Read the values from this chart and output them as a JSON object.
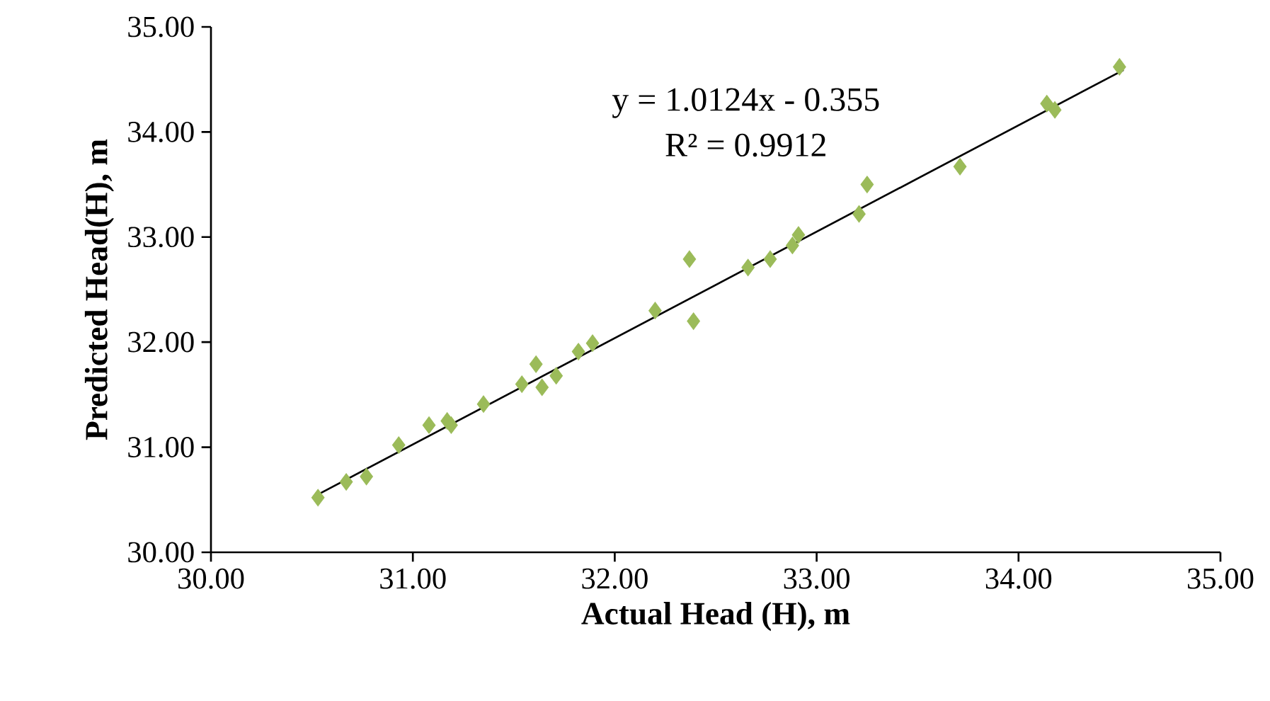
{
  "chart_data": {
    "type": "scatter",
    "xlabel": "Actual  Head (H), m",
    "ylabel": "Predicted  Head(H),  m",
    "annotations": [
      "y = 1.0124x - 0.355",
      "R² = 0.9912"
    ],
    "xlim": [
      30,
      35
    ],
    "ylim": [
      30,
      35
    ],
    "xticks": [
      {
        "value": 30,
        "label": "30.00"
      },
      {
        "value": 31,
        "label": "31.00"
      },
      {
        "value": 32,
        "label": "32.00"
      },
      {
        "value": 33,
        "label": "33.00"
      },
      {
        "value": 34,
        "label": "34.00"
      },
      {
        "value": 35,
        "label": "35.00"
      }
    ],
    "yticks": [
      {
        "value": 30,
        "label": "30.00"
      },
      {
        "value": 31,
        "label": "31.00"
      },
      {
        "value": 32,
        "label": "32.00"
      },
      {
        "value": 33,
        "label": "33.00"
      },
      {
        "value": 34,
        "label": "34.00"
      },
      {
        "value": 35,
        "label": "35.00"
      }
    ],
    "marker": "diamond",
    "series": [
      {
        "color": "#9bbb59",
        "x": [
          30.53,
          30.67,
          30.77,
          30.93,
          31.08,
          31.17,
          31.19,
          31.35,
          31.54,
          31.61,
          31.64,
          31.71,
          31.82,
          31.89,
          32.2,
          32.37,
          32.39,
          32.66,
          32.77,
          32.88,
          32.91,
          33.21,
          33.25,
          33.71,
          34.14,
          34.18,
          34.5
        ],
        "values": [
          30.52,
          30.67,
          30.72,
          31.02,
          31.21,
          31.25,
          31.21,
          31.41,
          31.6,
          31.79,
          31.57,
          31.68,
          31.91,
          31.99,
          32.3,
          32.79,
          32.2,
          32.71,
          32.79,
          32.92,
          33.02,
          33.22,
          33.5,
          33.67,
          34.27,
          34.21,
          34.62
        ]
      },
      {
        "type": "line",
        "color": "#000000",
        "marker": "none",
        "x": [
          30.53,
          34.52
        ],
        "values": [
          30.55,
          34.59
        ]
      }
    ]
  }
}
